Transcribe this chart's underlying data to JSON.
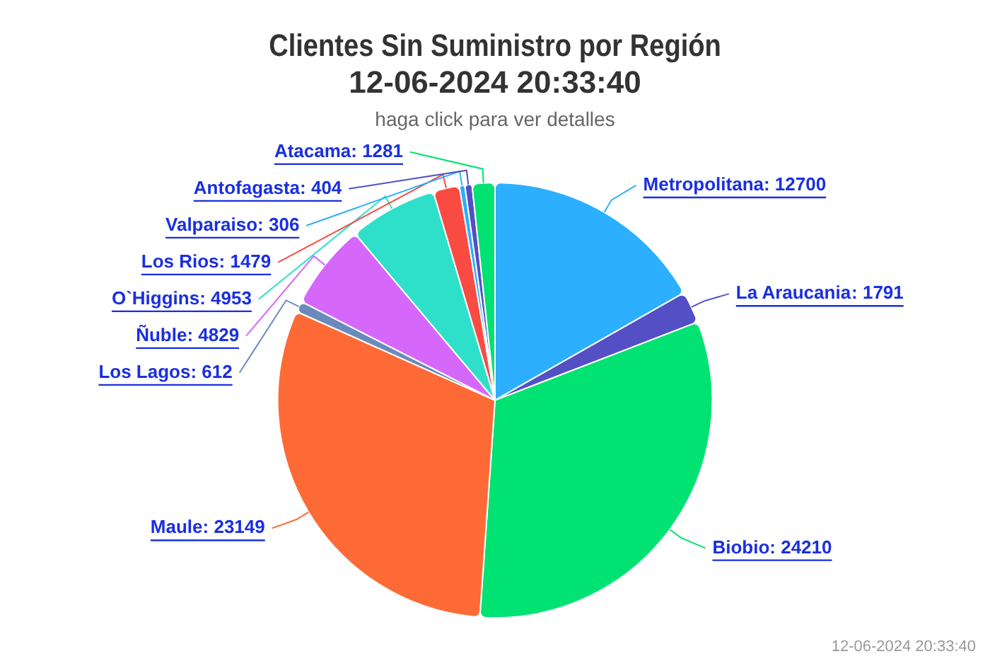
{
  "chart_data": {
    "type": "pie",
    "title": "Clientes Sin Suministro por Región\n12-06-2024 20:33:40",
    "subtitle": "haga click para ver detalles",
    "categories": [
      "Metropolitana",
      "La Araucania",
      "Biobio",
      "Maule",
      "Los Lagos",
      "Ñuble",
      "O`Higgins",
      "Los Rios",
      "Valparaiso",
      "Antofagasta",
      "Atacama"
    ],
    "values": [
      12700,
      1791,
      24210,
      23149,
      612,
      4829,
      4953,
      1479,
      306,
      404,
      1281
    ],
    "colors": [
      "#2caffe",
      "#544fc5",
      "#00e272",
      "#fe6a35",
      "#6b8abc",
      "#d568fb",
      "#2ee0ca",
      "#fa4b42",
      "#2caffe",
      "#544fc5",
      "#00e272"
    ],
    "value_labels": [
      ": 12700",
      ": 1791",
      ": 24210",
      ": 23149",
      ": 612",
      ": 4829",
      ": 4953",
      ": 1479",
      ": 306",
      ": 404",
      ": 1281"
    ],
    "legend": false,
    "annotations": [
      "12-06-2024 20:33:40"
    ]
  }
}
